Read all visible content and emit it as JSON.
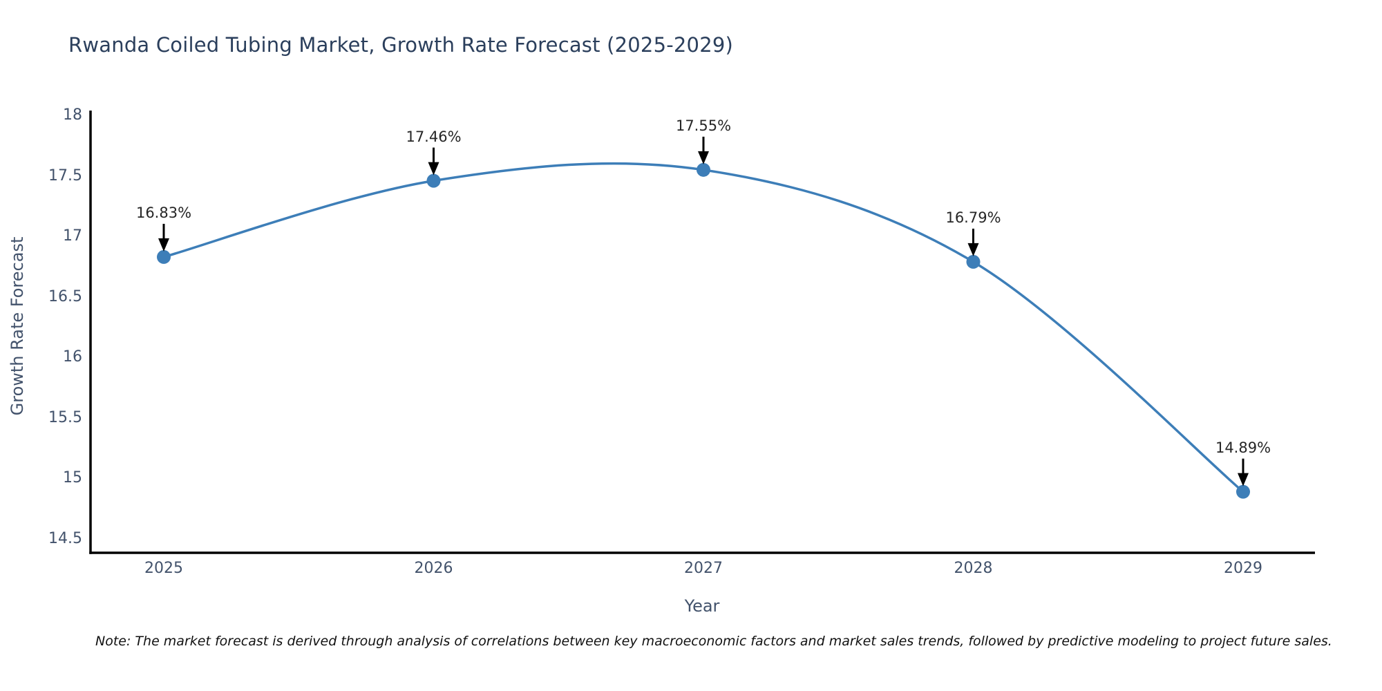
{
  "title": "Rwanda Coiled Tubing Market, Growth Rate Forecast (2025-2029)",
  "note": "Note: The market forecast is derived through analysis of correlations between key macroeconomic factors and market sales trends, followed by predictive modeling to project future sales.",
  "chart_data": {
    "type": "line",
    "title": "Rwanda Coiled Tubing Market, Growth Rate Forecast (2025-2029)",
    "xlabel": "Year",
    "ylabel": "Growth Rate Forecast",
    "categories": [
      "2025",
      "2026",
      "2027",
      "2028",
      "2029"
    ],
    "values": [
      16.83,
      17.46,
      17.55,
      16.79,
      14.89
    ],
    "point_labels": [
      "16.83%",
      "17.46%",
      "17.55%",
      "16.79%",
      "14.89%"
    ],
    "yticks": [
      "18",
      "17.5",
      "17",
      "16.5",
      "16",
      "15.5",
      "15",
      "14.5"
    ],
    "ytick_values": [
      18,
      17.5,
      17,
      16.5,
      16,
      15.5,
      15,
      14.5
    ],
    "ylim": [
      14.39,
      18.04
    ],
    "curve": "spline",
    "grid": false,
    "legend_position": "none",
    "line_color": "#3d7eb8",
    "marker_color": "#3d7eb8",
    "axis_color": "#000000",
    "annotation_arrow_color": "#000000",
    "tick_label_color": "#42526b",
    "title_color": "#2b3f5c"
  }
}
